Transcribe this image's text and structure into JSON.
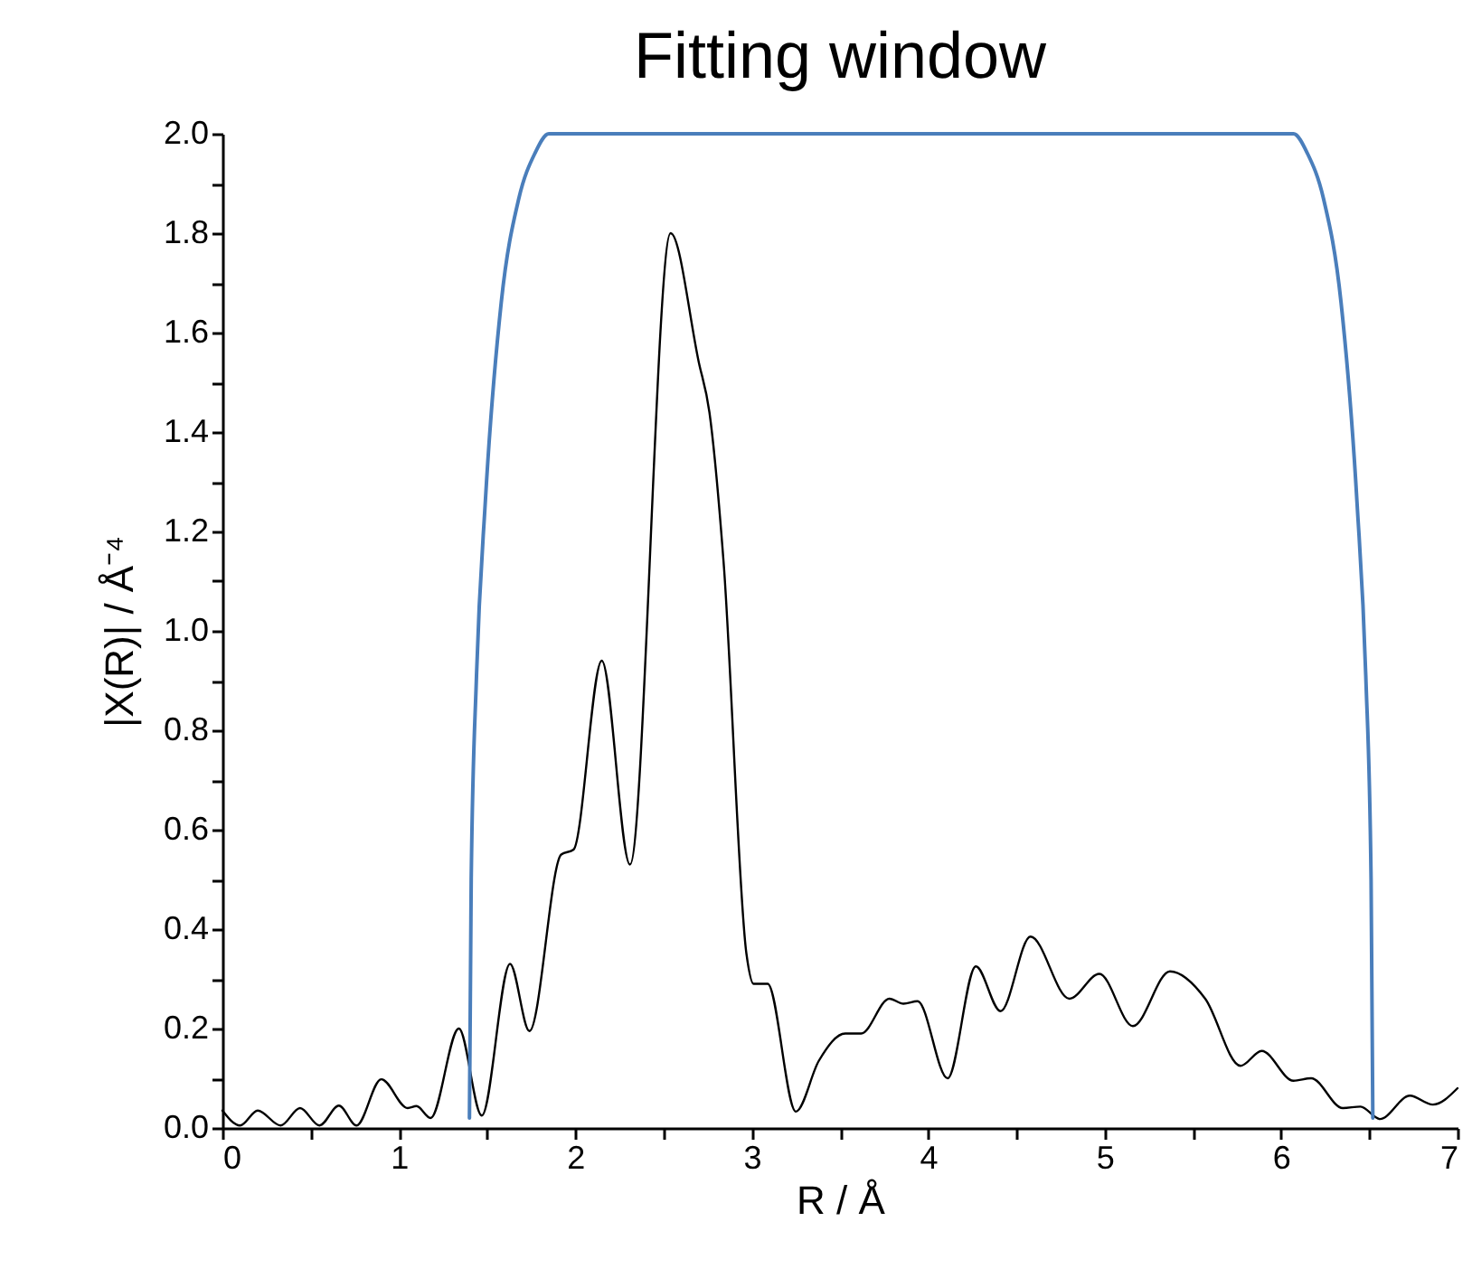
{
  "chart_data": {
    "type": "line",
    "title": "Fitting window",
    "xlabel": "R / Å",
    "ylabel": "|X(R)| / Å⁻⁴",
    "xlim": [
      0,
      7
    ],
    "ylim": [
      0,
      2.0
    ],
    "xticks": [
      0,
      {
        "value": 0.5,
        "label": null
      },
      1,
      {
        "value": 1.5,
        "label": null
      },
      2,
      {
        "value": 2.5,
        "label": null
      },
      3,
      {
        "value": 3.5,
        "label": null
      },
      4,
      {
        "value": 4.5,
        "label": null
      },
      5,
      {
        "value": 5.5,
        "label": null
      },
      6,
      {
        "value": 6.5,
        "label": null
      },
      7
    ],
    "yticks": [
      {
        "value": 0,
        "label": "0.0"
      },
      {
        "value": 0.1,
        "label": null
      },
      0.2,
      {
        "value": 0.3,
        "label": null
      },
      0.4,
      {
        "value": 0.5,
        "label": null
      },
      0.6,
      {
        "value": 0.7,
        "label": null
      },
      0.8,
      {
        "value": 0.9,
        "label": null
      },
      {
        "value": 1.0,
        "label": "1.0"
      },
      {
        "value": 1.1,
        "label": null
      },
      1.2,
      {
        "value": 1.3,
        "label": null
      },
      1.4,
      {
        "value": 1.5,
        "label": null
      },
      1.6,
      {
        "value": 1.7,
        "label": null
      },
      1.8,
      {
        "value": 1.9,
        "label": null
      },
      {
        "value": 2.0,
        "label": "2.0"
      }
    ],
    "grid": false,
    "marker": "none",
    "line_style": "solid",
    "series": [
      {
        "color": "#000000",
        "x": [
          0,
          0.1,
          0.2,
          0.33,
          0.44,
          0.55,
          0.66,
          0.76,
          0.9,
          1.05,
          1.1,
          1.18,
          1.34,
          1.47,
          1.63,
          1.74,
          1.92,
          1.99,
          2.15,
          2.31,
          2.54,
          2.7,
          2.76,
          2.84,
          2.97,
          3.01,
          3.09,
          3.25,
          3.38,
          3.53,
          3.62,
          3.78,
          3.86,
          3.94,
          4.11,
          4.27,
          4.41,
          4.58,
          4.8,
          4.97,
          5.16,
          5.37,
          5.57,
          5.77,
          5.89,
          6.07,
          6.17,
          6.35,
          6.45,
          6.56,
          6.73,
          6.86,
          7.0
        ],
        "values": [
          0.035,
          0.005,
          0.035,
          0.005,
          0.04,
          0.005,
          0.045,
          0.005,
          0.098,
          0.04,
          0.044,
          0.02,
          0.2,
          0.025,
          0.33,
          0.195,
          0.55,
          0.56,
          0.94,
          0.53,
          1.8,
          1.54,
          1.44,
          1.14,
          0.35,
          0.29,
          0.29,
          0.033,
          0.135,
          0.19,
          0.19,
          0.26,
          0.25,
          0.255,
          0.1,
          0.325,
          0.235,
          0.385,
          0.26,
          0.31,
          0.205,
          0.315,
          0.26,
          0.125,
          0.155,
          0.095,
          0.1,
          0.04,
          0.043,
          0.018,
          0.065,
          0.047,
          0.08
        ]
      },
      {
        "color": "#4a7ebb",
        "x": [
          1.4,
          1.41,
          1.44,
          1.49,
          1.58,
          1.68,
          1.77,
          1.85,
          6.07,
          6.15,
          6.24,
          6.34,
          6.43,
          6.48,
          6.51,
          6.52
        ],
        "values": [
          0.02,
          0.5,
          0.91,
          1.26,
          1.66,
          1.87,
          1.96,
          2.0,
          2.0,
          1.96,
          1.87,
          1.66,
          1.26,
          0.91,
          0.5,
          0.02
        ]
      }
    ]
  }
}
